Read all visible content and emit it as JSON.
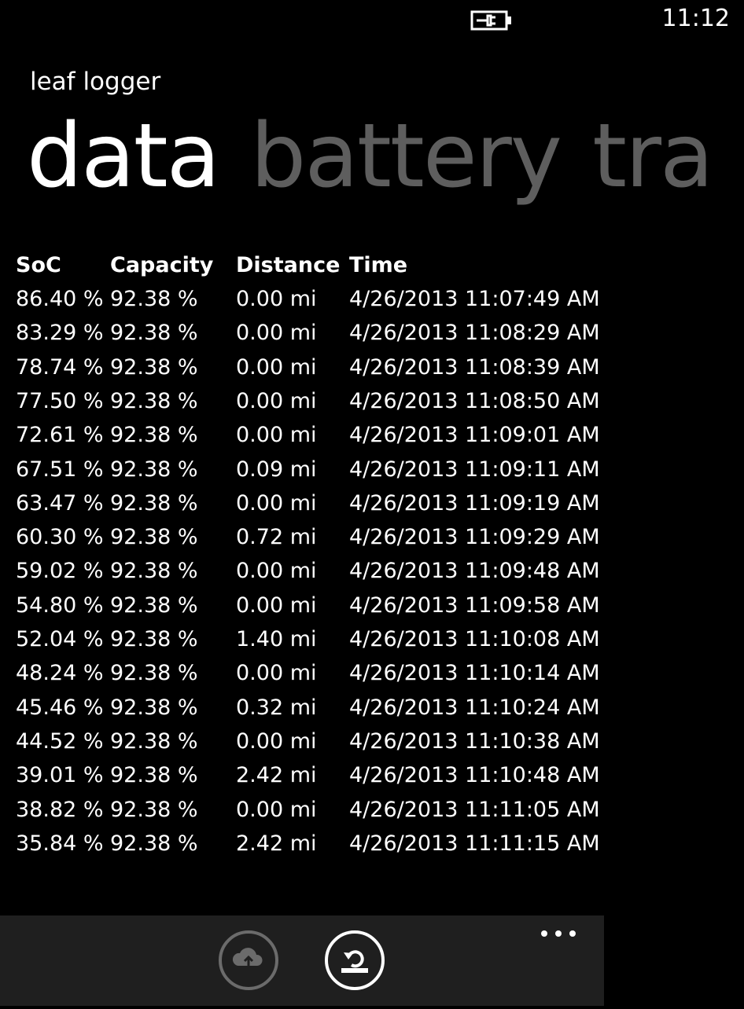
{
  "status_bar": {
    "time": "11:12"
  },
  "app": {
    "title": "leaf logger"
  },
  "pivot": {
    "items": [
      "data",
      "battery",
      "tra"
    ]
  },
  "table": {
    "headers": [
      "SoC",
      "Capacity",
      "Distance",
      "Time"
    ],
    "rows": [
      [
        "86.40 %",
        "92.38 %",
        "0.00 mi",
        "4/26/2013 11:07:49 AM"
      ],
      [
        "83.29 %",
        "92.38 %",
        "0.00 mi",
        "4/26/2013 11:08:29 AM"
      ],
      [
        "78.74 %",
        "92.38 %",
        "0.00 mi",
        "4/26/2013 11:08:39 AM"
      ],
      [
        "77.50 %",
        "92.38 %",
        "0.00 mi",
        "4/26/2013 11:08:50 AM"
      ],
      [
        "72.61 %",
        "92.38 %",
        "0.00 mi",
        "4/26/2013 11:09:01 AM"
      ],
      [
        "67.51 %",
        "92.38 %",
        "0.09 mi",
        "4/26/2013 11:09:11 AM"
      ],
      [
        "63.47 %",
        "92.38 %",
        "0.00 mi",
        "4/26/2013 11:09:19 AM"
      ],
      [
        "60.30 %",
        "92.38 %",
        "0.72 mi",
        "4/26/2013 11:09:29 AM"
      ],
      [
        "59.02 %",
        "92.38 %",
        "0.00 mi",
        "4/26/2013 11:09:48 AM"
      ],
      [
        "54.80 %",
        "92.38 %",
        "0.00 mi",
        "4/26/2013 11:09:58 AM"
      ],
      [
        "52.04 %",
        "92.38 %",
        "1.40 mi",
        "4/26/2013 11:10:08 AM"
      ],
      [
        "48.24 %",
        "92.38 %",
        "0.00 mi",
        "4/26/2013 11:10:14 AM"
      ],
      [
        "45.46 %",
        "92.38 %",
        "0.32 mi",
        "4/26/2013 11:10:24 AM"
      ],
      [
        "44.52 %",
        "92.38 %",
        "0.00 mi",
        "4/26/2013 11:10:38 AM"
      ],
      [
        "39.01 %",
        "92.38 %",
        "2.42 mi",
        "4/26/2013 11:10:48 AM"
      ],
      [
        "38.82 %",
        "92.38 %",
        "0.00 mi",
        "4/26/2013 11:11:05 AM"
      ],
      [
        "35.84 %",
        "92.38 %",
        "2.42 mi",
        "4/26/2013 11:11:15 AM"
      ]
    ]
  }
}
